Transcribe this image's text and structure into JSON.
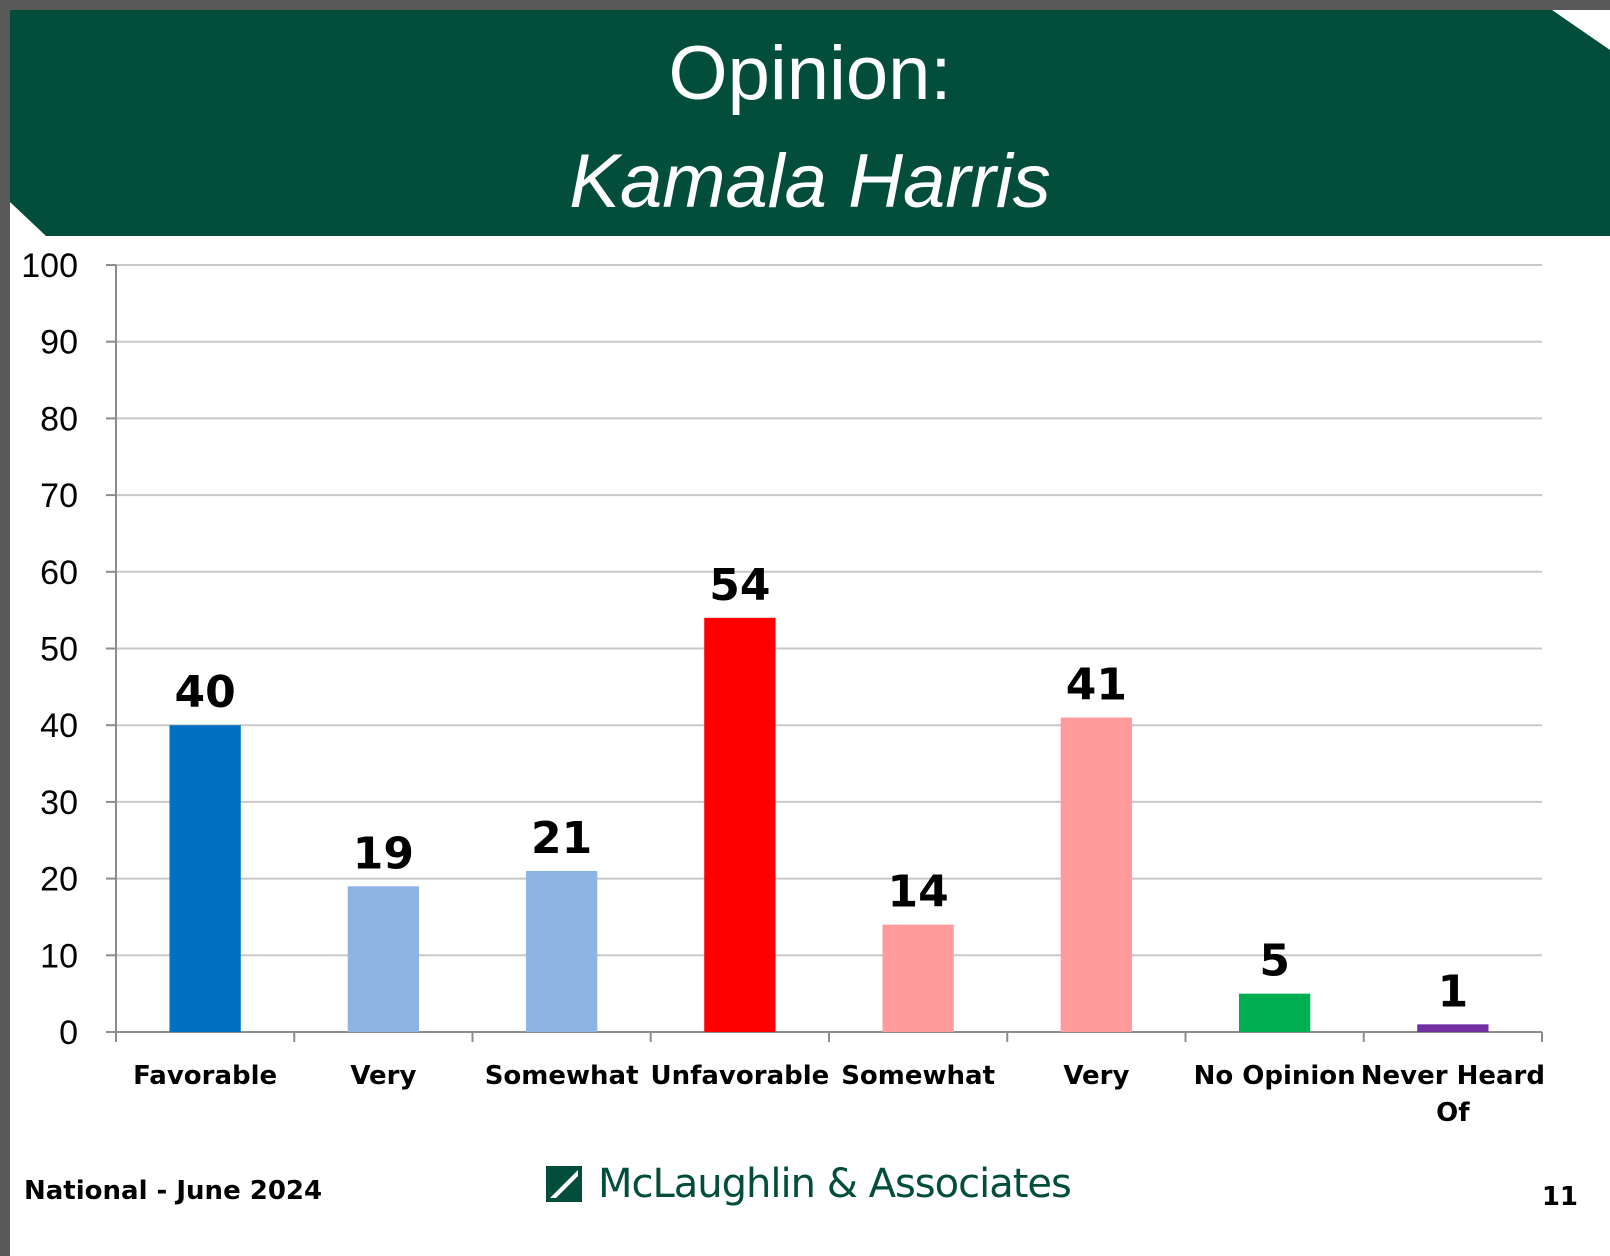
{
  "header": {
    "title_line1": "Opinion:",
    "title_line2": "Kamala Harris",
    "bg_color": "#024e3b"
  },
  "chart_data": {
    "type": "bar",
    "categories": [
      "Favorable",
      "Very",
      "Somewhat",
      "Unfavorable",
      "Somewhat",
      "Very",
      "No Opinion",
      "Never Heard Of"
    ],
    "values": [
      40,
      19,
      21,
      54,
      14,
      41,
      5,
      1
    ],
    "colors": [
      "#0070c0",
      "#8eb4e3",
      "#8eb4e3",
      "#ff0000",
      "#ff9b9b",
      "#ff9b9b",
      "#00b050",
      "#7030a0"
    ],
    "ylim": [
      0,
      100
    ],
    "yticks": [
      0,
      10,
      20,
      30,
      40,
      50,
      60,
      70,
      80,
      90,
      100
    ],
    "grid": true,
    "title": "",
    "xlabel": "",
    "ylabel": ""
  },
  "footer": {
    "left_text": "National - June 2024",
    "logo_text": "McLaughlin & Associates",
    "page_number": "11"
  }
}
